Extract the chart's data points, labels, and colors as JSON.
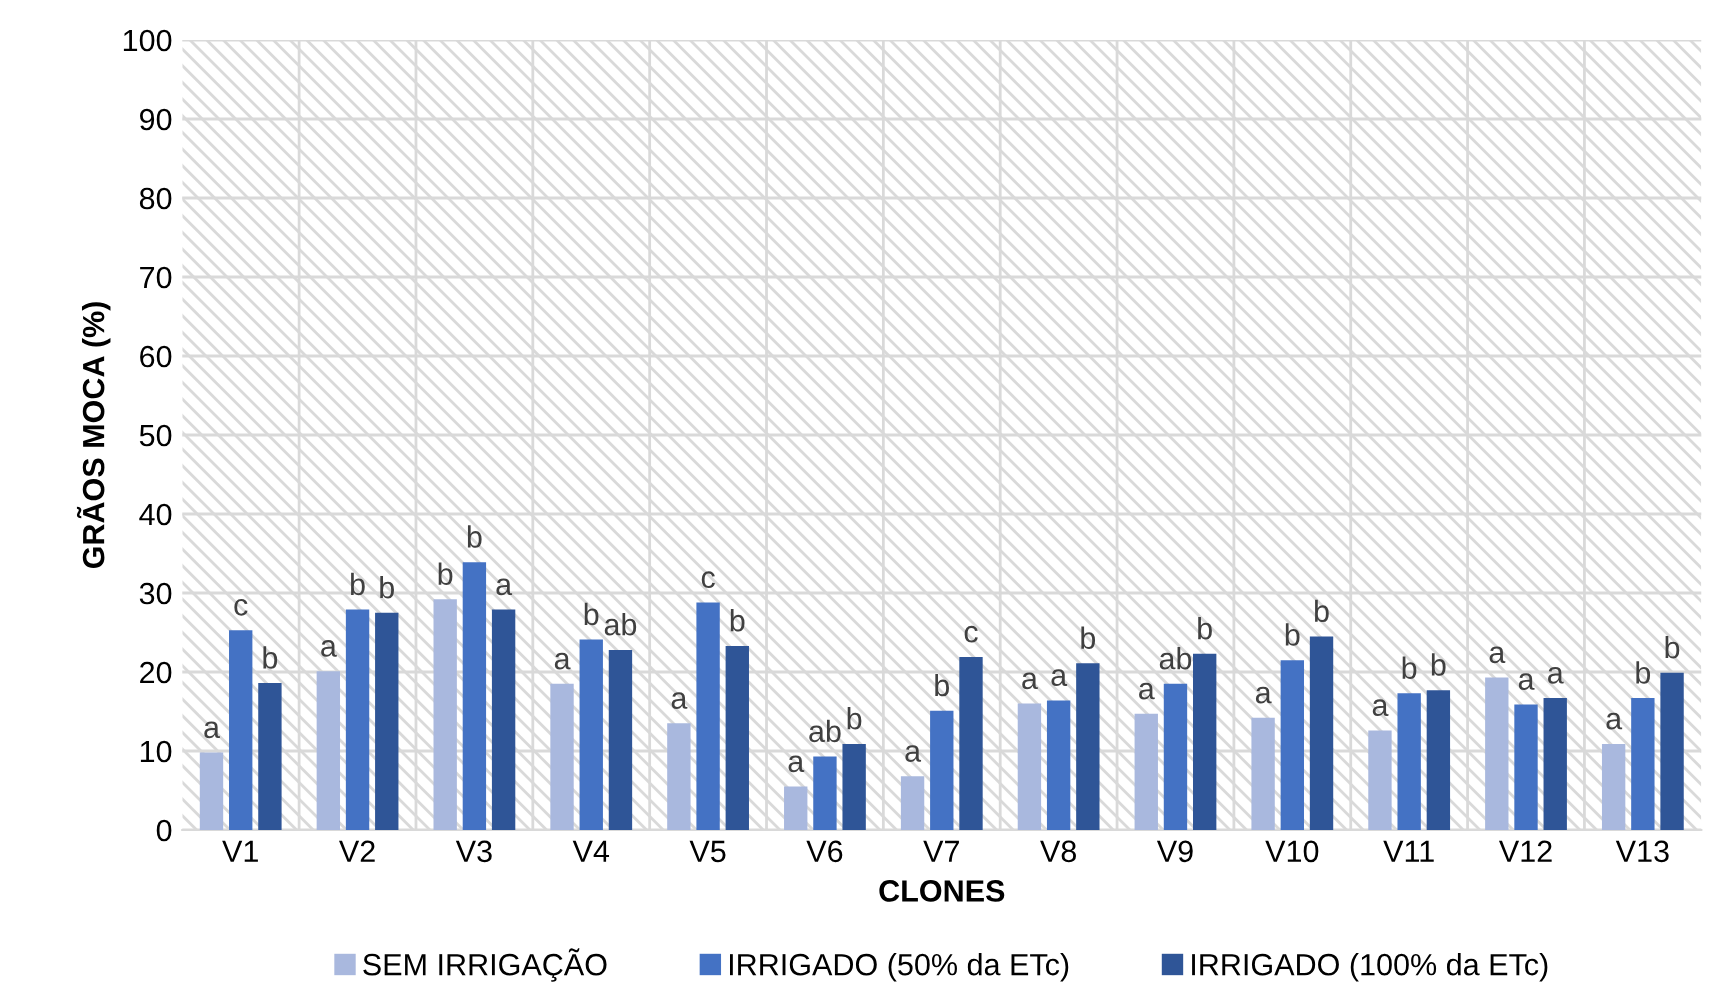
{
  "chart_data": {
    "type": "bar",
    "xlabel": "CLONES",
    "ylabel": "GRÃOS MOCA (%)",
    "categories": [
      "V1",
      "V2",
      "V3",
      "V4",
      "V5",
      "V6",
      "V7",
      "V8",
      "V9",
      "V10",
      "V11",
      "V12",
      "V13"
    ],
    "series": [
      {
        "name": "SEM IRRIGAÇÃO",
        "color": "#a9b8de",
        "values": [
          9.8,
          20.1,
          29.2,
          18.5,
          13.5,
          5.5,
          6.8,
          16.0,
          14.7,
          14.2,
          12.6,
          19.3,
          10.9
        ],
        "value_labels": [
          "a",
          "a",
          "b",
          "a",
          "a",
          "a",
          "a",
          "a",
          "a",
          "a",
          "a",
          "a",
          "a"
        ]
      },
      {
        "name": "IRRIGADO (50% da ETc)",
        "color": "#4472c4",
        "values": [
          25.3,
          27.9,
          33.9,
          24.1,
          28.8,
          9.3,
          15.1,
          16.4,
          18.5,
          21.5,
          17.3,
          15.9,
          16.7
        ],
        "value_labels": [
          "c",
          "b",
          "b",
          "b",
          "c",
          "ab",
          "b",
          "a",
          "ab",
          "b",
          "b",
          "a",
          "b"
        ]
      },
      {
        "name": "IRRIGADO (100% da ETc)",
        "color": "#2f5597",
        "values": [
          18.6,
          27.5,
          27.9,
          22.8,
          23.3,
          10.9,
          21.9,
          21.1,
          22.3,
          24.5,
          17.7,
          16.7,
          19.9
        ],
        "value_labels": [
          "b",
          "b",
          "a",
          "ab",
          "b",
          "b",
          "c",
          "b",
          "b",
          "b",
          "b",
          "a",
          "b"
        ]
      }
    ],
    "ylim": [
      0,
      100
    ],
    "yticks": [
      0,
      10,
      20,
      30,
      40,
      50,
      60,
      70,
      80,
      90,
      100
    ],
    "grid": true,
    "legend": "bottom"
  }
}
